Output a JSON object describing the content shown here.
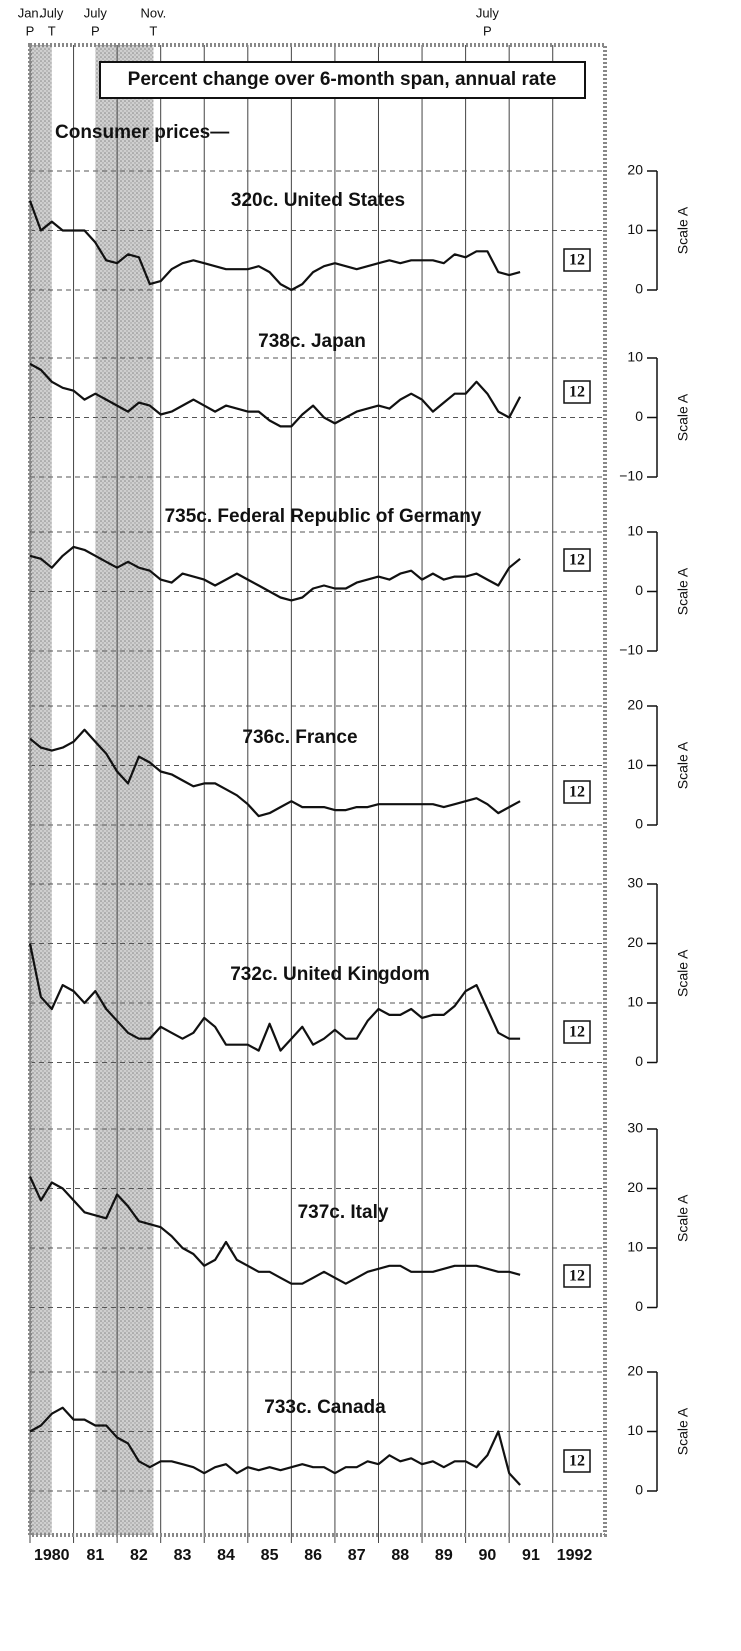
{
  "title": "Percent change over 6-month span, annual rate",
  "subtitle": "Consumer prices—",
  "xlim": [
    1980,
    1993.2
  ],
  "xticks": [
    {
      "value": 1980,
      "label": "1980"
    },
    {
      "value": 1981,
      "label": "81"
    },
    {
      "value": 1982,
      "label": "82"
    },
    {
      "value": 1983,
      "label": "83"
    },
    {
      "value": 1984,
      "label": "84"
    },
    {
      "value": 1985,
      "label": "85"
    },
    {
      "value": 1986,
      "label": "86"
    },
    {
      "value": 1987,
      "label": "87"
    },
    {
      "value": 1988,
      "label": "88"
    },
    {
      "value": 1989,
      "label": "89"
    },
    {
      "value": 1990,
      "label": "90"
    },
    {
      "value": 1991,
      "label": "91"
    },
    {
      "value": 1992,
      "label": "1992"
    }
  ],
  "recessions": [
    [
      1980.0,
      1980.5
    ],
    [
      1981.5,
      1982.833
    ]
  ],
  "turning_points": [
    {
      "x": 1980.0,
      "month": "Jan.",
      "phase": "P"
    },
    {
      "x": 1980.5,
      "month": "July",
      "phase": "T"
    },
    {
      "x": 1981.5,
      "month": "July",
      "phase": "P"
    },
    {
      "x": 1982.833,
      "month": "Nov.",
      "phase": "T"
    },
    {
      "x": 1990.5,
      "month": "July",
      "phase": "P"
    }
  ],
  "chart_data": [
    {
      "type": "line",
      "title": "320c. United States",
      "ylabel": "Scale A",
      "span_label": "12",
      "color": "#111",
      "grid": true,
      "ylim": [
        0,
        20
      ],
      "yticks": [
        0,
        10,
        20
      ],
      "x": [
        1980,
        1980.25,
        1980.5,
        1980.75,
        1981,
        1981.25,
        1981.5,
        1981.75,
        1982,
        1982.25,
        1982.5,
        1982.75,
        1983,
        1983.25,
        1983.5,
        1983.75,
        1984,
        1984.25,
        1984.5,
        1984.75,
        1985,
        1985.25,
        1985.5,
        1985.75,
        1986,
        1986.25,
        1986.5,
        1986.75,
        1987,
        1987.25,
        1987.5,
        1987.75,
        1988,
        1988.25,
        1988.5,
        1988.75,
        1989,
        1989.25,
        1989.5,
        1989.75,
        1990,
        1990.25,
        1990.5,
        1990.75,
        1991,
        1991.25
      ],
      "values": [
        15,
        10,
        11.5,
        10,
        10,
        10,
        8,
        5,
        4.5,
        6,
        5.5,
        1,
        1.5,
        3.5,
        4.5,
        5,
        4.5,
        4,
        3.5,
        3.5,
        3.5,
        4,
        3,
        1,
        0,
        1,
        3,
        4,
        4.5,
        4,
        3.5,
        4,
        4.5,
        5,
        4.5,
        5,
        5,
        5,
        4.5,
        6,
        5.5,
        6.5,
        6.5,
        3,
        2.5,
        3
      ]
    },
    {
      "type": "line",
      "title": "738c. Japan",
      "ylabel": "Scale A",
      "span_label": "12",
      "color": "#111",
      "grid": true,
      "ylim": [
        -10,
        10
      ],
      "yticks": [
        {
          "value": -10,
          "label": "−10"
        },
        0,
        10
      ],
      "x": [
        1980,
        1980.25,
        1980.5,
        1980.75,
        1981,
        1981.25,
        1981.5,
        1981.75,
        1982,
        1982.25,
        1982.5,
        1982.75,
        1983,
        1983.25,
        1983.5,
        1983.75,
        1984,
        1984.25,
        1984.5,
        1984.75,
        1985,
        1985.25,
        1985.5,
        1985.75,
        1986,
        1986.25,
        1986.5,
        1986.75,
        1987,
        1987.25,
        1987.5,
        1987.75,
        1988,
        1988.25,
        1988.5,
        1988.75,
        1989,
        1989.25,
        1989.5,
        1989.75,
        1990,
        1990.25,
        1990.5,
        1990.75,
        1991,
        1991.25
      ],
      "values": [
        9,
        8,
        6,
        5,
        4.5,
        3,
        4,
        3,
        2,
        1,
        2.5,
        2,
        0.5,
        1,
        2,
        3,
        2,
        1,
        2,
        1.5,
        1,
        1,
        -0.5,
        -1.5,
        -1.5,
        0.5,
        2,
        0,
        -1,
        0,
        1,
        1.5,
        2,
        1.5,
        3,
        4,
        3,
        1,
        2.5,
        4,
        4,
        6,
        4,
        1,
        0,
        3.5
      ]
    },
    {
      "type": "line",
      "title": "735c. Federal Republic of Germany",
      "ylabel": "Scale A",
      "span_label": "12",
      "color": "#111",
      "grid": true,
      "ylim": [
        -10,
        10
      ],
      "yticks": [
        {
          "value": -10,
          "label": "−10"
        },
        0,
        10
      ],
      "x": [
        1980,
        1980.25,
        1980.5,
        1980.75,
        1981,
        1981.25,
        1981.5,
        1981.75,
        1982,
        1982.25,
        1982.5,
        1982.75,
        1983,
        1983.25,
        1983.5,
        1983.75,
        1984,
        1984.25,
        1984.5,
        1984.75,
        1985,
        1985.25,
        1985.5,
        1985.75,
        1986,
        1986.25,
        1986.5,
        1986.75,
        1987,
        1987.25,
        1987.5,
        1987.75,
        1988,
        1988.25,
        1988.5,
        1988.75,
        1989,
        1989.25,
        1989.5,
        1989.75,
        1990,
        1990.25,
        1990.5,
        1990.75,
        1991,
        1991.25
      ],
      "values": [
        6,
        5.5,
        4,
        6,
        7.5,
        7,
        6,
        5,
        4,
        5,
        4,
        3.5,
        2,
        1.5,
        3,
        2.5,
        2,
        1,
        2,
        3,
        2,
        1,
        0,
        -1,
        -1.5,
        -1,
        0.5,
        1,
        0.5,
        0.5,
        1.5,
        2,
        2.5,
        2,
        3,
        3.5,
        2,
        3,
        2,
        2.5,
        2.5,
        3,
        2,
        1,
        4,
        5.5
      ]
    },
    {
      "type": "line",
      "title": "736c. France",
      "ylabel": "Scale A",
      "span_label": "12",
      "color": "#111",
      "grid": true,
      "ylim": [
        0,
        20
      ],
      "yticks": [
        0,
        10,
        20
      ],
      "x": [
        1980,
        1980.25,
        1980.5,
        1980.75,
        1981,
        1981.25,
        1981.5,
        1981.75,
        1982,
        1982.25,
        1982.5,
        1982.75,
        1983,
        1983.25,
        1983.5,
        1983.75,
        1984,
        1984.25,
        1984.5,
        1984.75,
        1985,
        1985.25,
        1985.5,
        1985.75,
        1986,
        1986.25,
        1986.5,
        1986.75,
        1987,
        1987.25,
        1987.5,
        1987.75,
        1988,
        1988.25,
        1988.5,
        1988.75,
        1989,
        1989.25,
        1989.5,
        1989.75,
        1990,
        1990.25,
        1990.5,
        1990.75,
        1991,
        1991.25
      ],
      "values": [
        14.5,
        13,
        12.5,
        13,
        14,
        16,
        14,
        12,
        9,
        7,
        11.5,
        10.5,
        9,
        8.5,
        7.5,
        6.5,
        7,
        7,
        6,
        5,
        3.5,
        1.5,
        2,
        3,
        4,
        3,
        3,
        3,
        2.5,
        2.5,
        3,
        3,
        3.5,
        3.5,
        3.5,
        3.5,
        3.5,
        3.5,
        3,
        3.5,
        4,
        4.5,
        3.5,
        2,
        3,
        4
      ]
    },
    {
      "type": "line",
      "title": "732c. United Kingdom",
      "ylabel": "Scale A",
      "span_label": "12",
      "color": "#111",
      "grid": true,
      "ylim": [
        0,
        30
      ],
      "yticks": [
        0,
        10,
        20,
        30
      ],
      "x": [
        1980,
        1980.25,
        1980.5,
        1980.75,
        1981,
        1981.25,
        1981.5,
        1981.75,
        1982,
        1982.25,
        1982.5,
        1982.75,
        1983,
        1983.25,
        1983.5,
        1983.75,
        1984,
        1984.25,
        1984.5,
        1984.75,
        1985,
        1985.25,
        1985.5,
        1985.75,
        1986,
        1986.25,
        1986.5,
        1986.75,
        1987,
        1987.25,
        1987.5,
        1987.75,
        1988,
        1988.25,
        1988.5,
        1988.75,
        1989,
        1989.25,
        1989.5,
        1989.75,
        1990,
        1990.25,
        1990.5,
        1990.75,
        1991,
        1991.25
      ],
      "values": [
        20,
        11,
        9,
        13,
        12,
        10,
        12,
        9,
        7,
        5,
        4,
        4,
        6,
        5,
        4,
        5,
        7.5,
        6,
        3,
        3,
        3,
        2,
        6.5,
        2,
        4,
        6,
        3,
        4,
        5.5,
        4,
        4,
        7,
        9,
        8,
        8,
        9,
        7.5,
        8,
        8,
        9.5,
        12,
        13,
        9,
        5,
        4,
        4
      ]
    },
    {
      "type": "line",
      "title": "737c. Italy",
      "ylabel": "Scale A",
      "span_label": "12",
      "color": "#111",
      "grid": true,
      "ylim": [
        0,
        30
      ],
      "yticks": [
        0,
        10,
        20,
        30
      ],
      "x": [
        1980,
        1980.25,
        1980.5,
        1980.75,
        1981,
        1981.25,
        1981.5,
        1981.75,
        1982,
        1982.25,
        1982.5,
        1982.75,
        1983,
        1983.25,
        1983.5,
        1983.75,
        1984,
        1984.25,
        1984.5,
        1984.75,
        1985,
        1985.25,
        1985.5,
        1985.75,
        1986,
        1986.25,
        1986.5,
        1986.75,
        1987,
        1987.25,
        1987.5,
        1987.75,
        1988,
        1988.25,
        1988.5,
        1988.75,
        1989,
        1989.25,
        1989.5,
        1989.75,
        1990,
        1990.25,
        1990.5,
        1990.75,
        1991,
        1991.25
      ],
      "values": [
        22,
        18,
        21,
        20,
        18,
        16,
        15.5,
        15,
        19,
        17,
        14.5,
        14,
        13.5,
        12,
        10,
        9,
        7,
        8,
        11,
        8,
        7,
        6,
        6,
        5,
        4,
        4,
        5,
        6,
        5,
        4,
        5,
        6,
        6.5,
        7,
        7,
        6,
        6,
        6,
        6.5,
        7,
        7,
        7,
        6.5,
        6,
        6,
        5.5
      ]
    },
    {
      "type": "line",
      "title": "733c. Canada",
      "ylabel": "Scale A",
      "span_label": "12",
      "color": "#111",
      "grid": true,
      "ylim": [
        0,
        20
      ],
      "yticks": [
        0,
        10,
        20
      ],
      "x": [
        1980,
        1980.25,
        1980.5,
        1980.75,
        1981,
        1981.25,
        1981.5,
        1981.75,
        1982,
        1982.25,
        1982.5,
        1982.75,
        1983,
        1983.25,
        1983.5,
        1983.75,
        1984,
        1984.25,
        1984.5,
        1984.75,
        1985,
        1985.25,
        1985.5,
        1985.75,
        1986,
        1986.25,
        1986.5,
        1986.75,
        1987,
        1987.25,
        1987.5,
        1987.75,
        1988,
        1988.25,
        1988.5,
        1988.75,
        1989,
        1989.25,
        1989.5,
        1989.75,
        1990,
        1990.25,
        1990.5,
        1990.75,
        1991,
        1991.25
      ],
      "values": [
        10,
        11,
        13,
        14,
        12,
        12,
        11,
        11,
        9,
        8,
        5,
        4,
        5,
        5,
        4.5,
        4,
        3,
        4,
        4.5,
        3,
        4,
        3.5,
        4,
        3.5,
        4,
        4.5,
        4,
        4,
        3,
        4,
        4,
        5,
        4.5,
        6,
        5,
        5.5,
        4.5,
        5,
        4,
        5,
        5,
        4,
        6,
        10,
        3,
        1
      ]
    }
  ]
}
